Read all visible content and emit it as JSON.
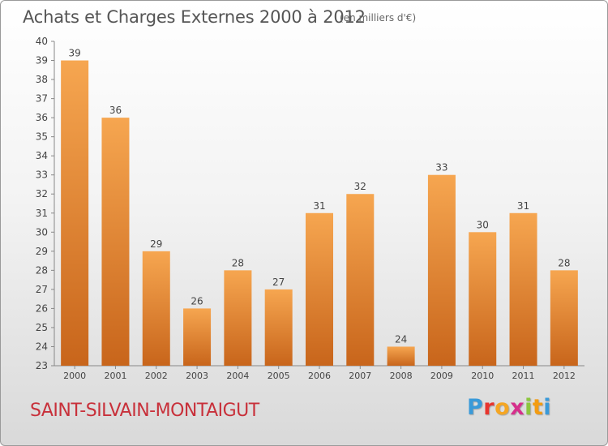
{
  "chart_data": {
    "type": "bar",
    "title": "Achats et Charges Externes 2000 à 2012",
    "subtitle": "(en milliers d'€)",
    "categories": [
      "2000",
      "2001",
      "2002",
      "2003",
      "2004",
      "2005",
      "2006",
      "2007",
      "2008",
      "2009",
      "2010",
      "2011",
      "2012"
    ],
    "values": [
      39,
      36,
      29,
      26,
      28,
      27,
      31,
      32,
      24,
      33,
      30,
      31,
      28
    ],
    "ylim": [
      23,
      40
    ],
    "yticks": [
      23,
      24,
      25,
      26,
      27,
      28,
      29,
      30,
      31,
      32,
      33,
      34,
      35,
      36,
      37,
      38,
      39,
      40
    ],
    "xlabel": "",
    "ylabel": "",
    "grid": false,
    "colors": {
      "bar_light": "#f6a650",
      "bar_dark": "#c8651b",
      "axis": "#888888",
      "text": "#444444"
    }
  },
  "footer": {
    "town": "SAINT-SILVAIN-MONTAIGUT",
    "logo_letters": [
      "P",
      "r",
      "o",
      "x",
      "i",
      "t",
      "i"
    ],
    "logo_colors": [
      "#3a9ad9",
      "#e8352e",
      "#f5a623",
      "#d62f8c",
      "#8cc63f",
      "#f39c12",
      "#3a9ad9"
    ]
  }
}
